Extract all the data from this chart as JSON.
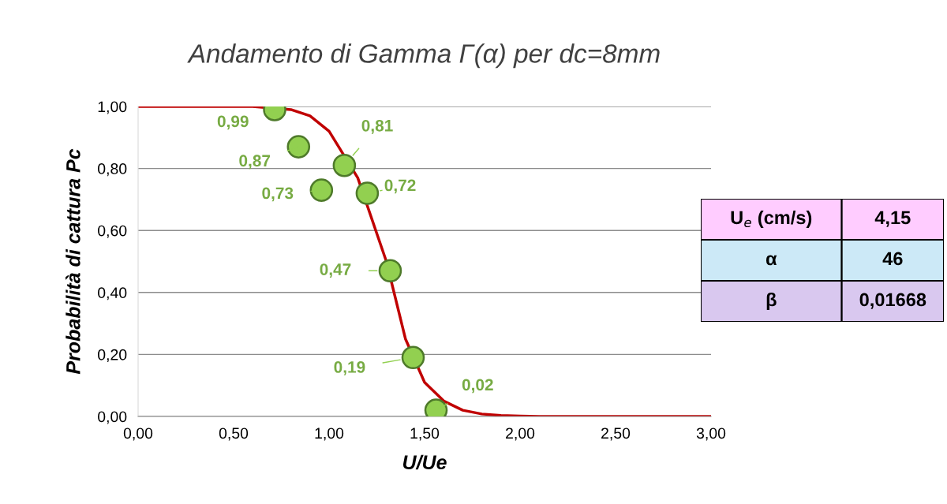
{
  "chart_data": [
    {
      "type": "scatter",
      "title": "Andamento di Gamma Γ(α) per dc=8mm",
      "xlabel": "U/Ue",
      "ylabel": "Probabilità di cattura Pc",
      "xlim": [
        0,
        3
      ],
      "ylim": [
        0,
        1
      ],
      "xticks": [
        {
          "value": 0,
          "label": "0,00"
        },
        {
          "value": 0.5,
          "label": "0,50"
        },
        {
          "value": 1,
          "label": "1,00"
        },
        {
          "value": 1.5,
          "label": "1,50"
        },
        {
          "value": 2,
          "label": "2,00"
        },
        {
          "value": 2.5,
          "label": "2,50"
        },
        {
          "value": 3,
          "label": "3,00"
        }
      ],
      "yticks": [
        {
          "value": 0,
          "label": "0,00"
        },
        {
          "value": 0.2,
          "label": "0,20"
        },
        {
          "value": 0.4,
          "label": "0,40"
        },
        {
          "value": 0.6,
          "label": "0,60"
        },
        {
          "value": 0.8,
          "label": "0,80"
        },
        {
          "value": 1,
          "label": "1,00"
        }
      ],
      "grid": "y",
      "legend": false,
      "series": [
        {
          "type": "line",
          "color": "#c00000",
          "x": [
            0,
            0.6,
            0.8,
            0.9,
            1.0,
            1.15,
            1.3,
            1.4,
            1.5,
            1.6,
            1.7,
            1.8,
            1.9,
            2.0,
            2.1,
            3.0
          ],
          "values": [
            1,
            1,
            0.99,
            0.97,
            0.92,
            0.77,
            0.5,
            0.25,
            0.11,
            0.05,
            0.02,
            0.008,
            0.003,
            0.001,
            0,
            0
          ]
        },
        {
          "marker": "circle",
          "color": "#92d050",
          "x": [
            0.715,
            0.84,
            0.96,
            1.08,
            1.2,
            1.32,
            1.44,
            1.56
          ],
          "values": [
            0.99,
            0.87,
            0.73,
            0.81,
            0.72,
            0.47,
            0.19,
            0.02
          ],
          "value_labels": [
            "0,99",
            "0,87",
            "0,73",
            "0,81",
            "0,72",
            "0,47",
            "0,19",
            "0,02"
          ]
        }
      ],
      "annotations": [
        "U$_{e}$ (cm/s)",
        "4,15",
        "α",
        "46",
        "β",
        "0,01668"
      ]
    }
  ]
}
